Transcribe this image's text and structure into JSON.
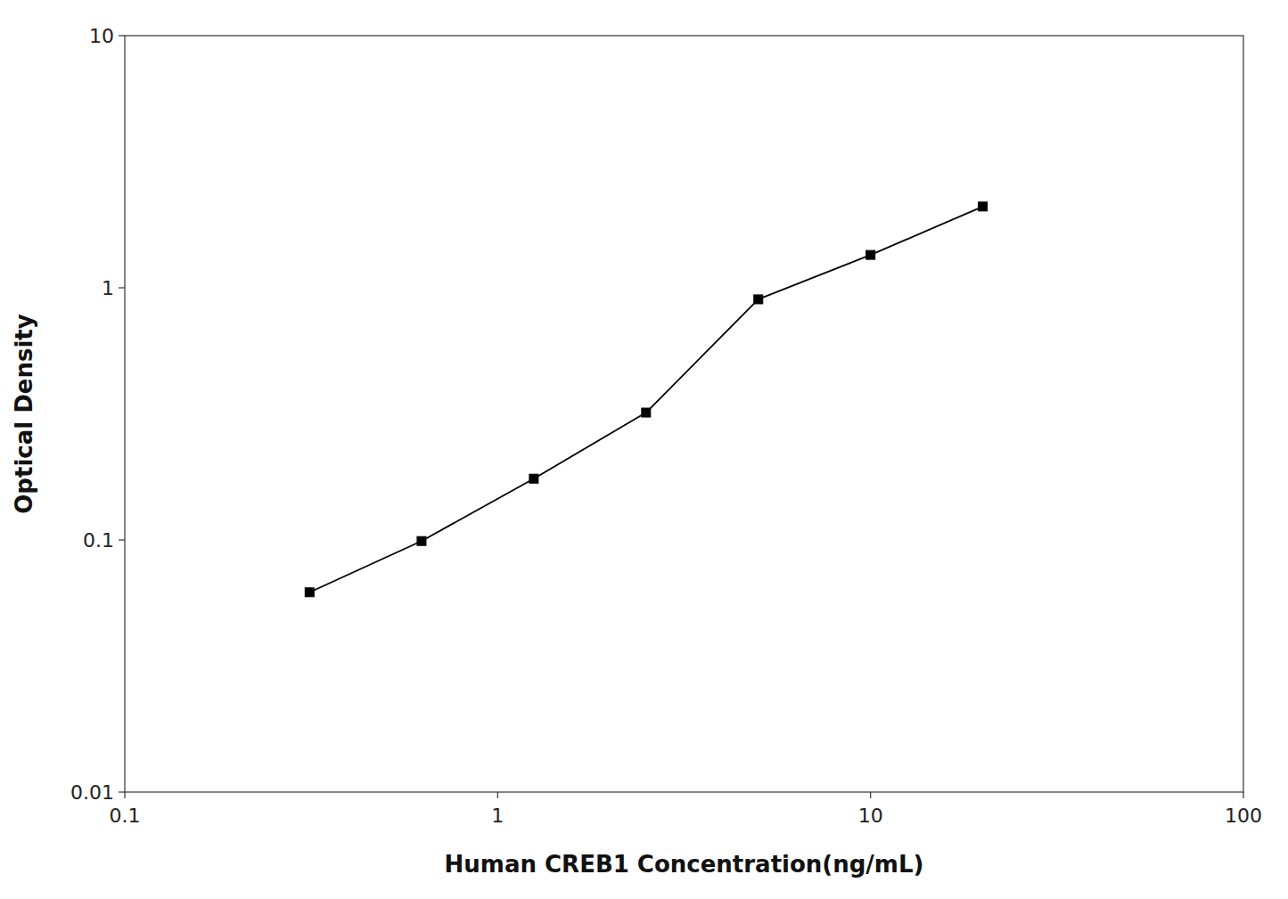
{
  "chart_data": {
    "type": "line",
    "x": [
      0.313,
      0.625,
      1.25,
      2.5,
      5.0,
      10.0,
      20.0
    ],
    "values": [
      0.062,
      0.099,
      0.175,
      0.32,
      0.9,
      1.35,
      2.1
    ],
    "xlabel": "Human CREB1 Concentration(ng/mL)",
    "ylabel": "Optical Density",
    "xlim": [
      0.1,
      100
    ],
    "ylim": [
      0.01,
      10
    ],
    "xticks": [
      0.1,
      1,
      10,
      100
    ],
    "yticks": [
      0.01,
      0.1,
      1,
      10
    ],
    "log": true,
    "grid": false,
    "color": "#000000",
    "marker": "square"
  }
}
